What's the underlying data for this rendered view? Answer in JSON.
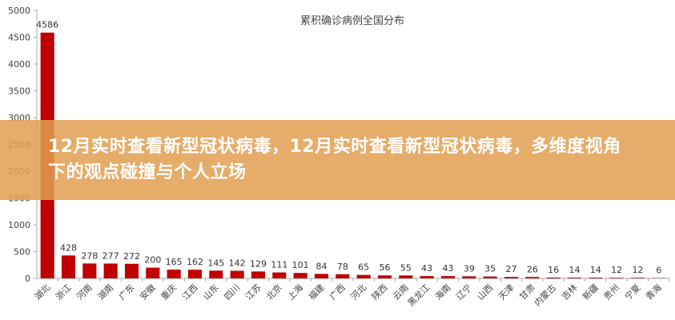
{
  "chart_data": {
    "type": "bar",
    "title": "累积确诊病例全国分布",
    "xlabel": "",
    "ylabel": "",
    "ylim": [
      0,
      5000
    ],
    "yticks": [
      0,
      500,
      1000,
      1500,
      2000,
      2500,
      3000,
      3500,
      4000,
      4500,
      5000
    ],
    "grid": false,
    "bar_color": "#c00000",
    "categories": [
      "湖北",
      "浙江",
      "河南",
      "湖南",
      "广东",
      "安徽",
      "重庆",
      "江西",
      "山东",
      "四川",
      "江苏",
      "北京",
      "上海",
      "福建",
      "广西",
      "河北",
      "陕西",
      "云南",
      "黑龙江",
      "海南",
      "辽宁",
      "山西",
      "天津",
      "甘肃",
      "内蒙古",
      "吉林",
      "新疆",
      "贵州",
      "宁夏",
      "青海"
    ],
    "values": [
      4586,
      428,
      278,
      277,
      272,
      200,
      165,
      162,
      145,
      142,
      129,
      111,
      101,
      84,
      78,
      65,
      56,
      55,
      43,
      43,
      39,
      35,
      27,
      26,
      16,
      14,
      14,
      12,
      12,
      6
    ]
  },
  "banner": {
    "title": "12月实时查看新型冠状病毒，12月实时查看新型冠状病毒，多维度视角下的观点碰撞与个人立场"
  }
}
